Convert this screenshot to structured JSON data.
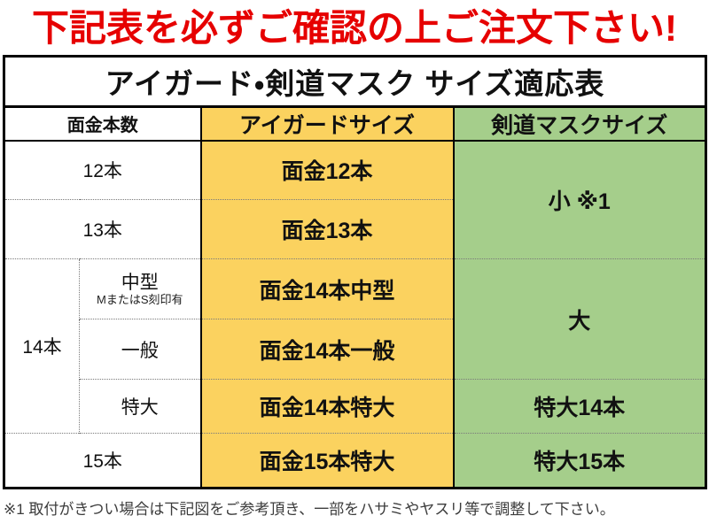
{
  "warning": "下記表を必ずご確認の上ご注文下さい!",
  "footnote": "※1 取付がきつい場合は下記図をご参考頂き、一部をハサミやヤスリ等で調整して下さい。",
  "table": {
    "title": "アイガード・剣道マスク サイズ適応表",
    "headers": {
      "mengane": "面金本数",
      "eyeguard": "アイガードサイズ",
      "mask": "剣道マスクサイズ"
    },
    "rows": {
      "r12": {
        "label": "12本",
        "eyeguard": "面金12本"
      },
      "r13": {
        "label": "13本",
        "eyeguard": "面金13本"
      },
      "mask_small": "小 ※1",
      "r14": {
        "label": "14本"
      },
      "r14_chugata": {
        "label": "中型",
        "note": "MまたはS刻印有",
        "eyeguard": "面金14本中型"
      },
      "r14_ippan": {
        "label": "一般",
        "eyeguard": "面金14本一般"
      },
      "mask_dai": "大",
      "r14_tokudai": {
        "label": "特大",
        "eyeguard": "面金14本特大",
        "mask": "特大14本"
      },
      "r15": {
        "label": "15本",
        "eyeguard": "面金15本特大",
        "mask": "特大15本"
      }
    }
  },
  "colors": {
    "warning_red": "#e60000",
    "eyeguard_yellow": "#fbd25f",
    "mask_green": "#a5ce8b",
    "border_black": "#000000"
  }
}
